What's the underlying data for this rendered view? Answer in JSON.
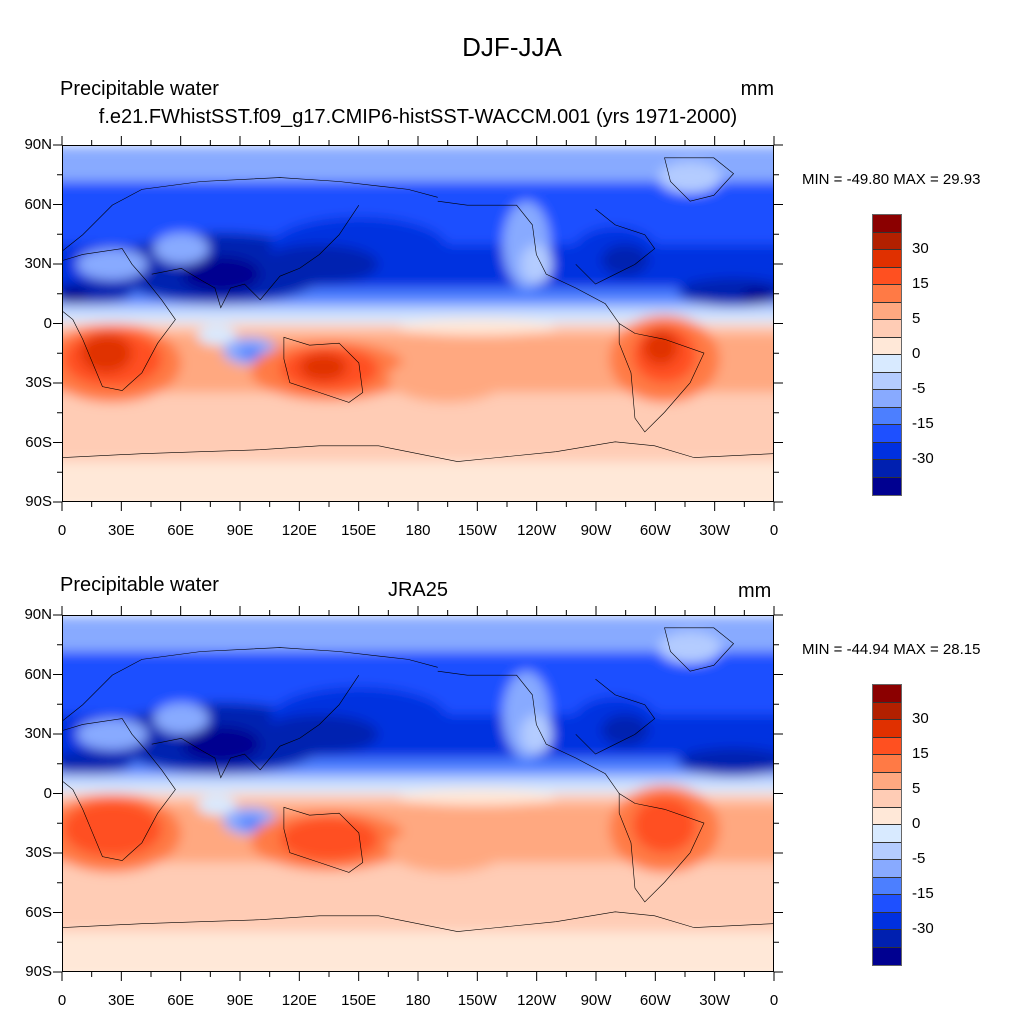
{
  "figure": {
    "title": "DJF-JJA"
  },
  "panels": [
    {
      "left_title": "Precipitable water",
      "center_title": "f.e21.FWhistSST.f09_g17.CMIP6-histSST-WACCM.001 (yrs 1971-2000)",
      "units": "mm",
      "minmax": "MIN = -49.80 MAX =  29.93"
    },
    {
      "left_title": "Precipitable water",
      "center_title": "JRA25",
      "units": "mm",
      "minmax": "MIN = -44.94 MAX =  28.15"
    }
  ],
  "lat_labels": [
    "90N",
    "60N",
    "30N",
    "0",
    "30S",
    "60S",
    "90S"
  ],
  "lon_labels": [
    "0",
    "30E",
    "60E",
    "90E",
    "120E",
    "150E",
    "180",
    "150W",
    "120W",
    "90W",
    "60W",
    "30W",
    "0"
  ],
  "colorbar": {
    "colors": [
      "#8b0000",
      "#b22000",
      "#e03000",
      "#ff5020",
      "#ff7a45",
      "#ffa880",
      "#ffccb5",
      "#ffe8d8",
      "#d8eaff",
      "#b4ccff",
      "#88aaff",
      "#4c7fff",
      "#1e50ff",
      "#0030e0",
      "#0020b0",
      "#000090"
    ],
    "labels": [
      "30",
      "15",
      "5",
      "0",
      "-5",
      "-15",
      "-30"
    ]
  }
}
